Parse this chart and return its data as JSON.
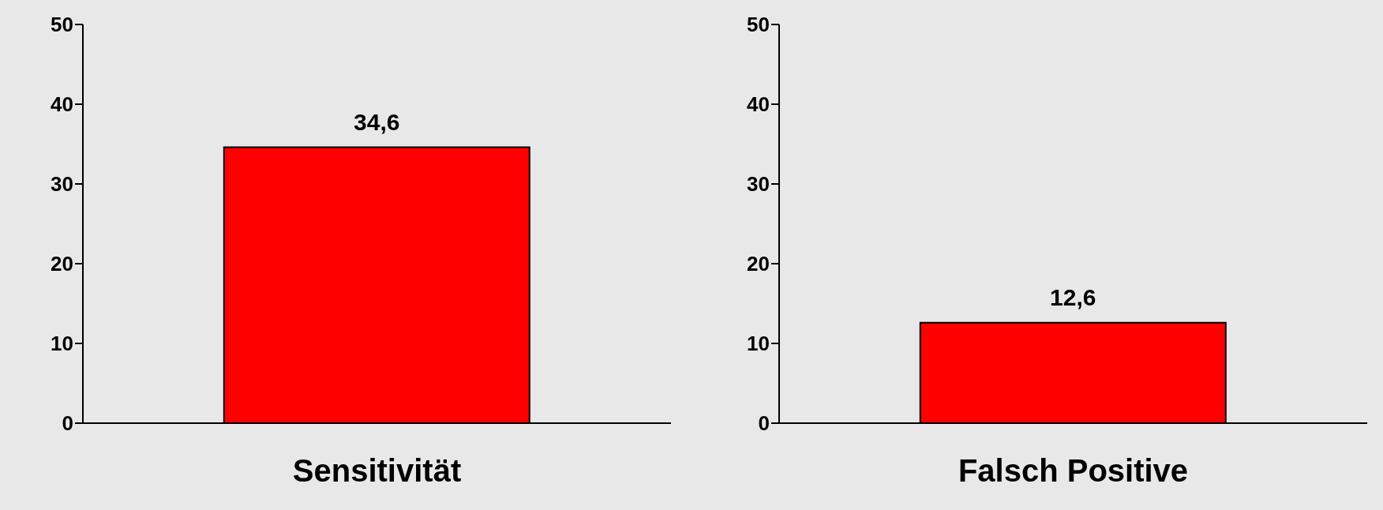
{
  "chart_data": [
    {
      "type": "bar",
      "categories": [
        "Sensitivität"
      ],
      "values": [
        34.6
      ],
      "value_labels": [
        "34,6"
      ],
      "color": "#ff0000",
      "ylim": [
        0,
        50
      ],
      "yticks": [
        0,
        10,
        20,
        30,
        40,
        50
      ],
      "grid": false
    },
    {
      "type": "bar",
      "categories": [
        "Falsch Positive"
      ],
      "values": [
        12.6
      ],
      "value_labels": [
        "12,6"
      ],
      "color": "#ff0000",
      "ylim": [
        0,
        50
      ],
      "yticks": [
        0,
        10,
        20,
        30,
        40,
        50
      ],
      "grid": false
    }
  ]
}
